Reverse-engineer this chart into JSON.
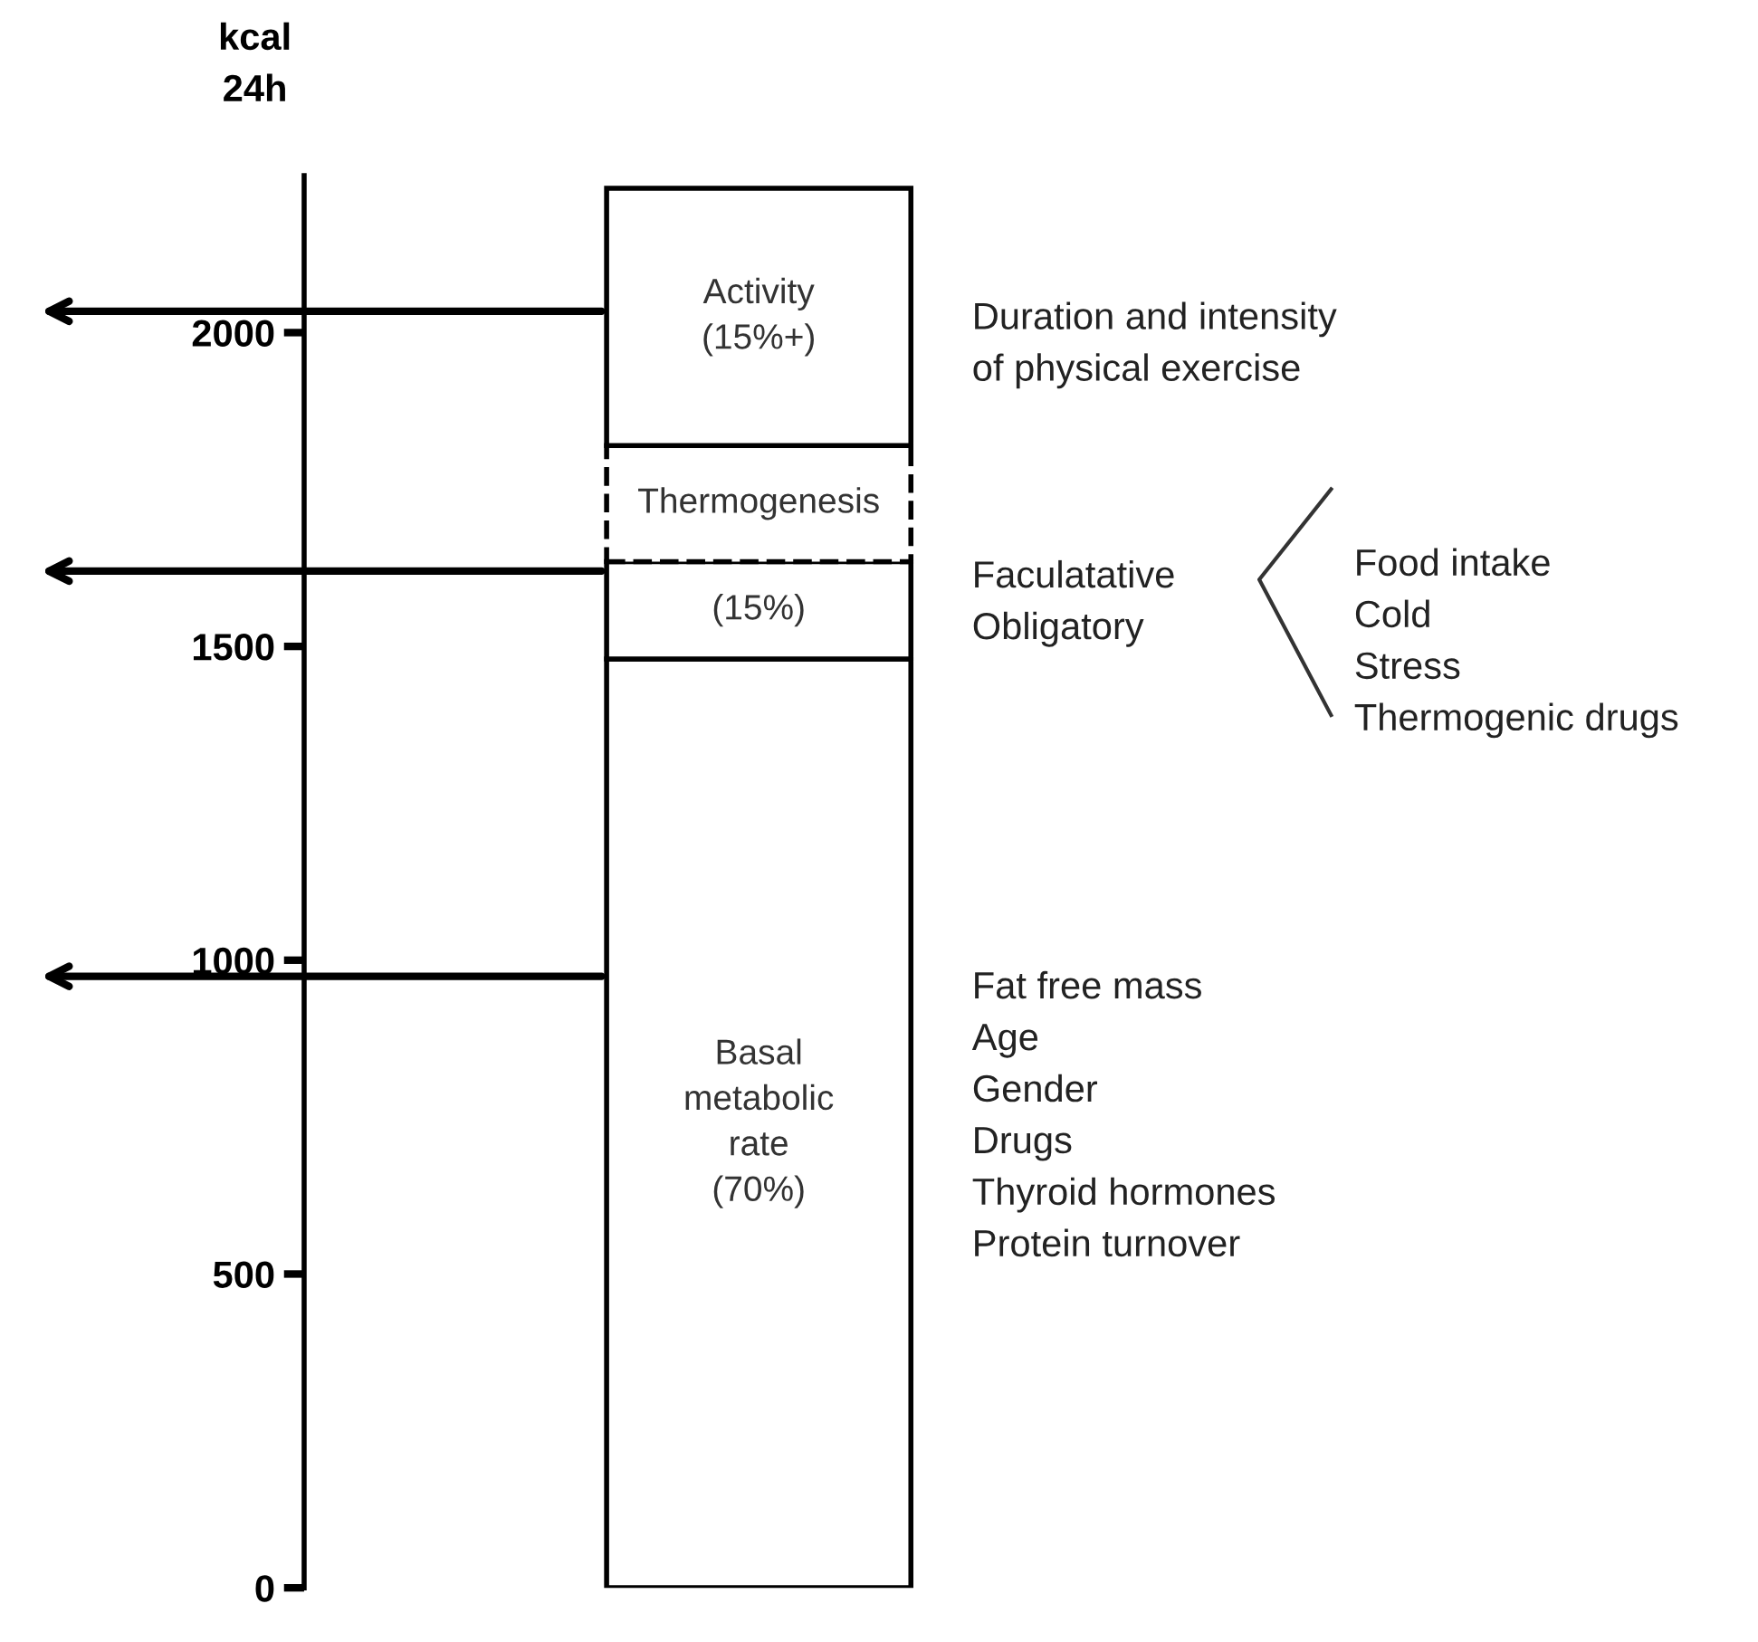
{
  "chart_data": {
    "type": "bar",
    "stacked": true,
    "categories": [
      null
    ],
    "ylabel": "kcal\n24h",
    "series": [
      {
        "name": "Basal\nmetabolic\nrate\n(70%)",
        "color": "#ffffff",
        "values": [
          1480
        ]
      },
      {
        "name": "(15%)",
        "color": "#ffffff",
        "values": [
          155
        ]
      },
      {
        "name": "Thermogenesis",
        "color": "#ffffff",
        "values": [
          185
        ],
        "line_style": "dashed"
      },
      {
        "name": "Activity\n(15%+)",
        "color": "#ffffff",
        "values": [
          410
        ]
      }
    ],
    "ylim": [
      0,
      2250
    ],
    "yticks": [
      0,
      500,
      1000,
      1500,
      2000
    ],
    "tick_labels": "y",
    "grid": false,
    "annotations": [
      "Duration and intensity\nof physical exercise",
      "Faculatative\nObligatory",
      "Food intake\nCold\nStress\nThermogenic drugs",
      "Fat free mass\nAge\nGender\nDrugs\nThyroid hormones\nProtein turnover"
    ]
  }
}
